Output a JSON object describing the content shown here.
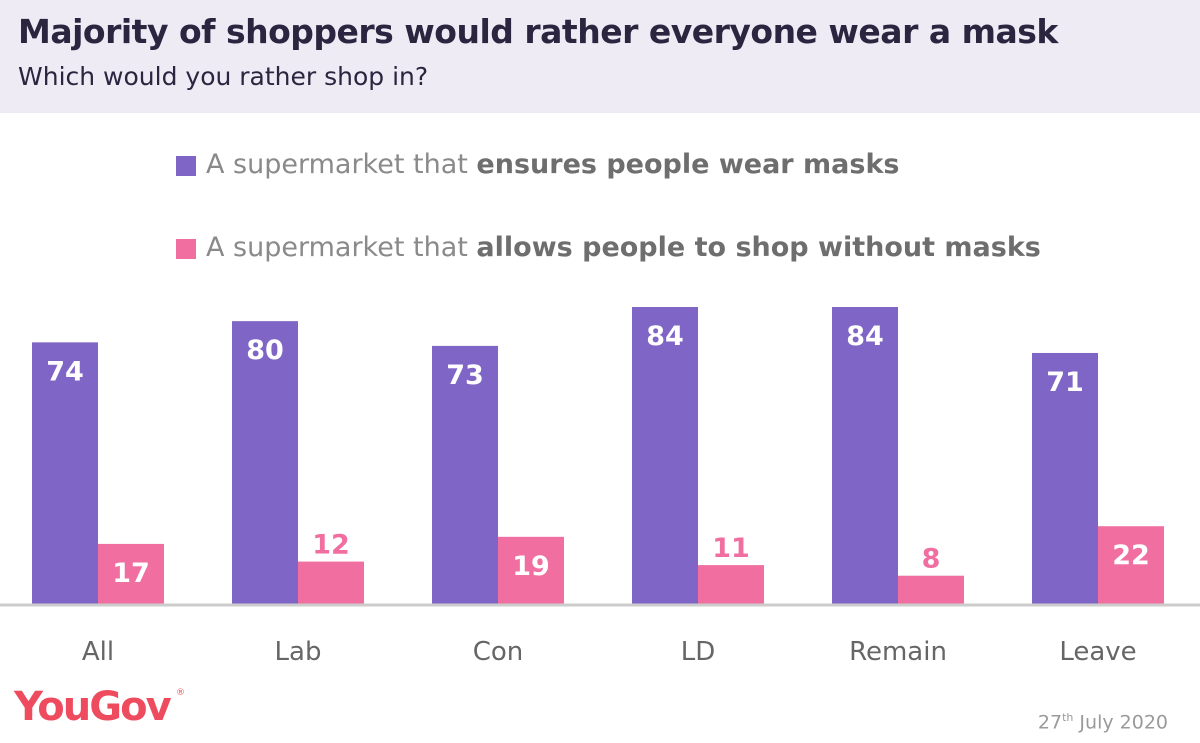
{
  "header": {
    "title": "Majority of shoppers would rather everyone wear a mask",
    "subtitle": "Which would you rather shop in?"
  },
  "legend": [
    {
      "prefix": "A supermarket that ",
      "bold": "ensures people wear masks",
      "color": "#7f66c6"
    },
    {
      "prefix": "A supermarket that ",
      "bold": "allows people to shop without masks",
      "color": "#f06ea0"
    }
  ],
  "chart_data": {
    "type": "bar",
    "categories": [
      "All",
      "Lab",
      "Con",
      "LD",
      "Remain",
      "Leave"
    ],
    "series": [
      {
        "values": [
          74,
          80,
          73,
          84,
          84,
          71
        ],
        "color": "#7f66c6"
      },
      {
        "values": [
          17,
          12,
          19,
          11,
          8,
          22
        ],
        "color": "#f06ea0"
      }
    ],
    "ylim": [
      0,
      84
    ],
    "grid": false,
    "legend_position": "top",
    "label_color_inside": "#ffffff",
    "axis_color": "#cccccc",
    "category_label_color": "#666666"
  },
  "footer": {
    "brand": "YouGov",
    "brand_mark": "®",
    "date_day": "27",
    "date_suffix": "th",
    "date_rest": " July 2020"
  }
}
